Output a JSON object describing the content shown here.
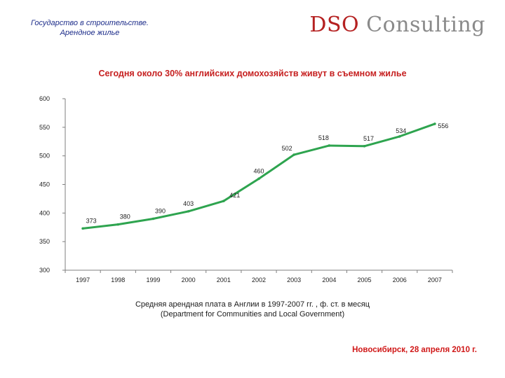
{
  "header": {
    "title_line1": "Государство в строительстве.",
    "title_line2": "Арендное жилье",
    "logo_part1": "DSO",
    "logo_part2": "Consulting"
  },
  "colors": {
    "line": "#2ea44f",
    "title": "#c62020",
    "header": "#1d2d8a",
    "footer": "#d01818"
  },
  "chart_data": {
    "type": "line",
    "title": "Сегодня около 30% английских домохозяйств живут в съемном жилье",
    "categories": [
      "1997",
      "1998",
      "1999",
      "2000",
      "2001",
      "2002",
      "2003",
      "2004",
      "2005",
      "2006",
      "2007"
    ],
    "series": [
      {
        "name": "Средняя арендная плата",
        "values": [
          373,
          380,
          390,
          403,
          421,
          460,
          502,
          518,
          517,
          534,
          556
        ]
      }
    ],
    "data_labels": [
      "373",
      "380",
      "390",
      "403",
      "421",
      "460",
      "502",
      "518",
      "517",
      "534",
      "556"
    ],
    "y_ticks": [
      "300",
      "350",
      "400",
      "450",
      "500",
      "550",
      "600"
    ],
    "ylim": [
      300,
      600
    ],
    "xlabel": "",
    "ylabel": "",
    "grid": false,
    "legend": "none"
  },
  "caption": {
    "line1": "Средняя арендная плата в Англии в 1997-2007 гг. , ф. ст. в месяц",
    "line2": "(Department for Communities and Local Government)"
  },
  "footer": "Новосибирск, 28 апреля 2010 г."
}
